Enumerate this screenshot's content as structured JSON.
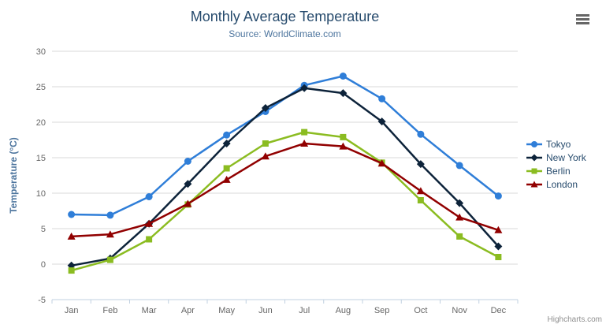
{
  "credits": {
    "label": "Highcharts.com"
  },
  "chart_data": {
    "type": "line",
    "title": "Monthly Average Temperature",
    "subtitle": "Source: WorldClimate.com",
    "xlabel": "",
    "ylabel": "Temperature (°C)",
    "categories": [
      "Jan",
      "Feb",
      "Mar",
      "Apr",
      "May",
      "Jun",
      "Jul",
      "Aug",
      "Sep",
      "Oct",
      "Nov",
      "Dec"
    ],
    "ylim": [
      -5,
      30
    ],
    "yticks": [
      -5,
      0,
      5,
      10,
      15,
      20,
      25,
      30
    ],
    "grid": "horizontal",
    "legend_position": "right",
    "series": [
      {
        "name": "Tokyo",
        "marker": "circle",
        "color": "#2f7ed8",
        "values": [
          7.0,
          6.9,
          9.5,
          14.5,
          18.2,
          21.5,
          25.2,
          26.5,
          23.3,
          18.3,
          13.9,
          9.6
        ]
      },
      {
        "name": "New York",
        "marker": "diamond",
        "color": "#0d233a",
        "values": [
          -0.2,
          0.8,
          5.7,
          11.3,
          17.0,
          22.0,
          24.8,
          24.1,
          20.1,
          14.1,
          8.6,
          2.5
        ]
      },
      {
        "name": "Berlin",
        "marker": "square",
        "color": "#8bbc21",
        "values": [
          -0.9,
          0.6,
          3.5,
          8.4,
          13.5,
          17.0,
          18.6,
          17.9,
          14.3,
          9.0,
          3.9,
          1.0
        ]
      },
      {
        "name": "London",
        "marker": "triangle",
        "color": "#910000",
        "values": [
          3.9,
          4.2,
          5.7,
          8.5,
          11.9,
          15.2,
          17.0,
          16.6,
          14.2,
          10.3,
          6.6,
          4.8
        ]
      }
    ],
    "colors": {
      "grid": "#d8d8d8",
      "axis_line": "#c0d0e0",
      "tick_label": "#666666",
      "title": "#274b6d",
      "subtitle": "#4d759e",
      "axis_title": "#4d759e",
      "legend_text": "#274b6d",
      "credits": "#909090",
      "menu_icon": "#666666"
    }
  }
}
